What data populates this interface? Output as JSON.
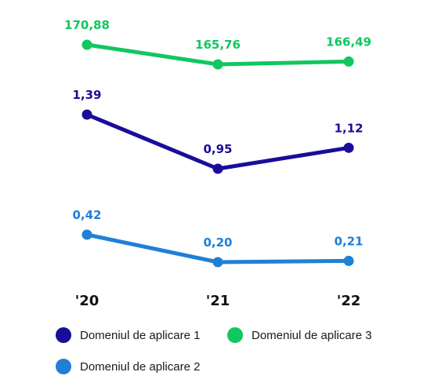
{
  "chart_data": {
    "type": "line",
    "categories": [
      "'20",
      "'21",
      "'22"
    ],
    "series": [
      {
        "key": "s3",
        "name": "Domeniul de aplicare 3",
        "color": "#10c760",
        "values": [
          170.88,
          165.76,
          166.49
        ],
        "labels": [
          "170,88",
          "165,76",
          "166,49"
        ]
      },
      {
        "key": "s1",
        "name": "Domeniul de aplicare 1",
        "color": "#1a0d99",
        "values": [
          1.39,
          0.95,
          1.12
        ],
        "labels": [
          "1,39",
          "0,95",
          "1,12"
        ]
      },
      {
        "key": "s2",
        "name": "Domeniul de aplicare 2",
        "color": "#1f80d6",
        "values": [
          0.42,
          0.2,
          0.21
        ],
        "labels": [
          "0,42",
          "0,20",
          "0,21"
        ]
      }
    ],
    "grid": false,
    "legend_position": "bottom"
  },
  "legend": {
    "item_1": {
      "label": "Domeniul de aplicare 1",
      "color": "#1a0d99"
    },
    "item_3": {
      "label": "Domeniul de aplicare 3",
      "color": "#10c760"
    },
    "item_2": {
      "label": "Domeniul de aplicare 2",
      "color": "#1f80d6"
    }
  }
}
